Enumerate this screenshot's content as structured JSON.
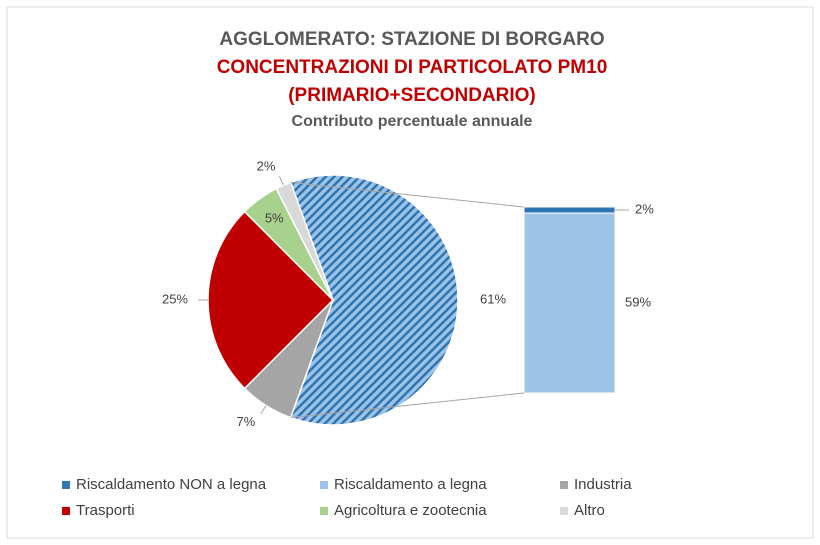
{
  "chart_data": {
    "type": "pie-of-bar",
    "title": "AGGLOMERATO: STAZIONE DI BORGARO",
    "subtitle": [
      "CONCENTRAZIONI DI PARTICOLATO PM10",
      "(PRIMARIO+SECONDARIO)"
    ],
    "caption": "Contributo percentuale annuale",
    "categories": [
      "Riscaldamento NON a legna",
      "Riscaldamento a legna",
      "Industria",
      "Trasporti",
      "Agricoltura e zootecnia",
      "Altro"
    ],
    "values": [
      2,
      59,
      7,
      25,
      5,
      2
    ],
    "value_labels": [
      "2%",
      "59%",
      "7%",
      "25%",
      "5%",
      "2%"
    ],
    "colors": [
      "#2e75b6",
      "#9dc3e6",
      "#a5a5a5",
      "#c00000",
      "#a9d18e",
      "#d9d9d9"
    ],
    "secondary_count": 2,
    "other": {
      "value": 61,
      "label": "61%"
    }
  }
}
